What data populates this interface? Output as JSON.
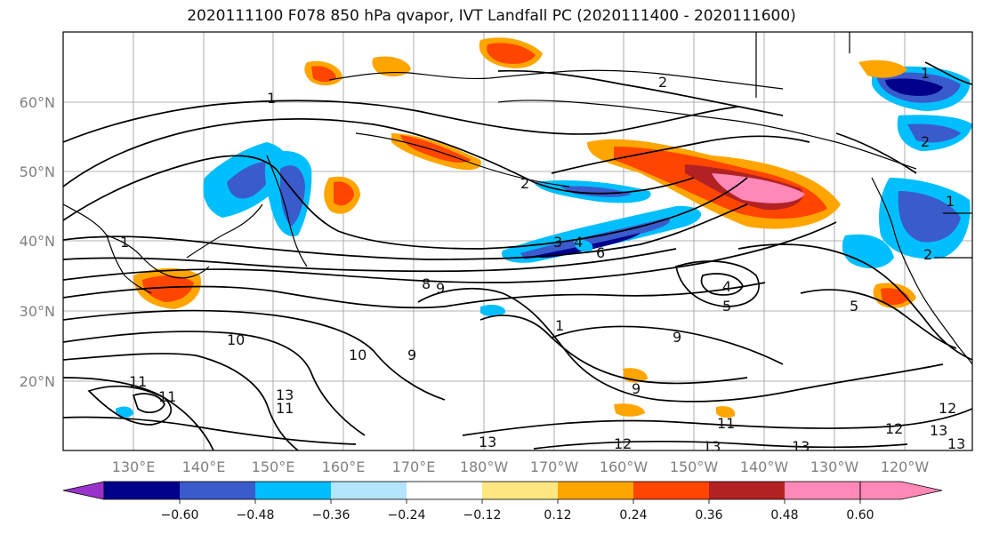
{
  "title": "2020111100 F078 850 hPa qvapor, IVT Landfall PC (2020111400 - 2020111600)",
  "lat_labels": [
    "60°N",
    "50°N",
    "40°N",
    "30°N",
    "20°N"
  ],
  "lon_labels": [
    "130°E",
    "140°E",
    "150°E",
    "160°E",
    "170°E",
    "180°W",
    "170°W",
    "160°W",
    "150°W",
    "140°W",
    "130°W",
    "120°W"
  ],
  "colorbar": {
    "ticks": [
      "−0.60",
      "−0.48",
      "−0.36",
      "−0.24",
      "−0.12",
      "0.12",
      "0.24",
      "0.36",
      "0.48",
      "0.60"
    ],
    "colors": [
      "#9933cc",
      "#00008b",
      "#3a5bcc",
      "#00bfff",
      "#b3e5fc",
      "#ffffff",
      "#ffe680",
      "#ffa500",
      "#ff4500",
      "#b22222",
      "#ff88b8"
    ]
  },
  "contour_labels": [
    "1",
    "2",
    "2",
    "1",
    "2",
    "3",
    "4",
    "6",
    "8",
    "9",
    "10",
    "11",
    "1",
    "4",
    "5",
    "9",
    "10",
    "9",
    "11",
    "1",
    "9",
    "11",
    "12",
    "13",
    "12",
    "13",
    "13",
    "12",
    "13",
    "13",
    "5",
    "1",
    "2",
    "11",
    "13"
  ],
  "colors": {
    "negative_strong": "#00008b",
    "negative_mid": "#3a5bcc",
    "negative_weak": "#00bfff",
    "positive_weak": "#ffe680",
    "positive_mid": "#ffa500",
    "positive_strong": "#ff4500",
    "positive_max": "#ff88b8"
  }
}
